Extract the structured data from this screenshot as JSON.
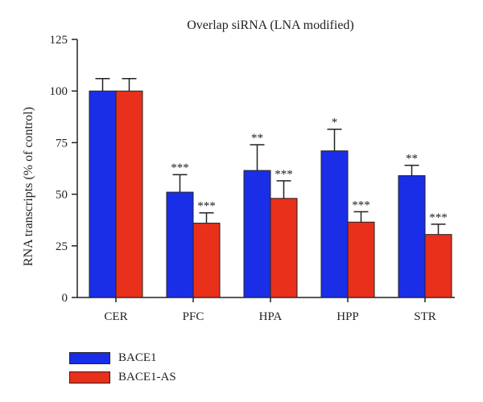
{
  "chart_data": {
    "type": "bar",
    "title": "Overlap siRNA (LNA modified)",
    "xlabel": "",
    "ylabel": "RNA transcripts (% of control)",
    "ylim": [
      0,
      125
    ],
    "yticks": [
      0,
      25,
      50,
      75,
      100,
      125
    ],
    "categories": [
      "CER",
      "PFC",
      "HPA",
      "HPP",
      "STR"
    ],
    "series": [
      {
        "name": "BACE1",
        "color": "#1a2ee8",
        "values": [
          100,
          51,
          61.5,
          71,
          59
        ],
        "errors": [
          6,
          8.5,
          12.5,
          10.5,
          5
        ],
        "annotations": [
          "",
          "***",
          "**",
          "*",
          "**"
        ]
      },
      {
        "name": "BACE1-AS",
        "color": "#e8301a",
        "values": [
          100,
          36,
          48,
          36.5,
          30.5
        ],
        "errors": [
          6,
          5,
          8.5,
          5,
          5
        ],
        "annotations": [
          "",
          "***",
          "***",
          "***",
          "***"
        ]
      }
    ],
    "grid": false,
    "legend_position": "bottom-left"
  }
}
